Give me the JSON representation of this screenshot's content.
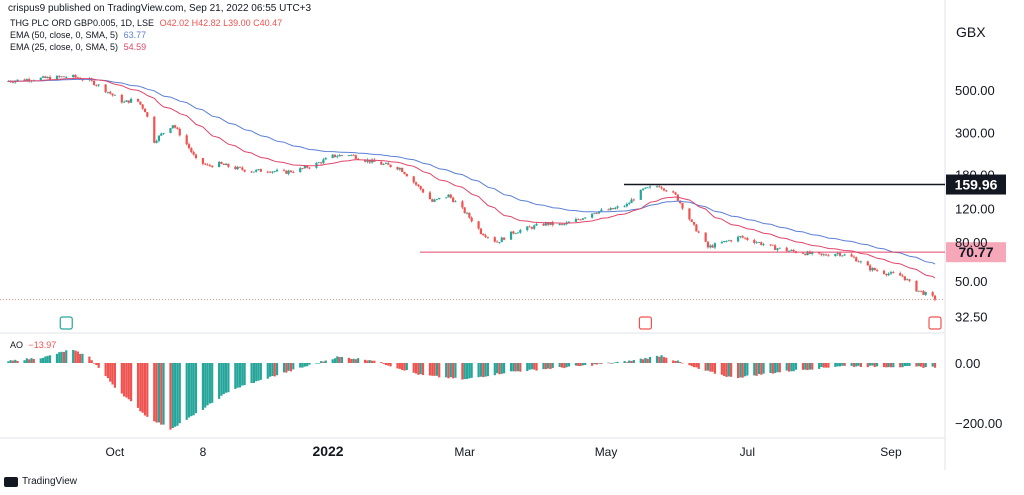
{
  "header": {
    "publisher": "crispus9 published on TradingView.com, Sep 21, 2022 06:55 UTC+3"
  },
  "legend": {
    "symbol": "THG PLC ORD GBP0.005, 1D, LSE",
    "ohlc": "O42.02 H42.82 L39.00 C40.47",
    "ema50_label": "EMA (50, close, 0, SMA, 5)",
    "ema50_value": "63.77",
    "ema25_label": "EMA (25, close, 0, SMA, 5)",
    "ema25_value": "54.59",
    "ao_label": "AO",
    "ao_value": "−13.97"
  },
  "footer": {
    "brand": "TradingView"
  },
  "colors": {
    "up": "#26a69a",
    "down": "#ef5350",
    "ema50": "#5b7fd6",
    "ema25": "#e0466a",
    "hline_resist": "#131722",
    "hline_support": "#e0466a"
  },
  "chart_data": [
    {
      "type": "candlestick",
      "title": "",
      "ylabel": "GBX",
      "y_scale": "log",
      "ylim": [
        30,
        900
      ],
      "y_ticks": [
        "500.00",
        "300.00",
        "180.00",
        "120.00",
        "80.00",
        "50.00",
        "32.50"
      ],
      "x_ticks": [
        "Oct",
        "8",
        "2022",
        "Mar",
        "May",
        "Jul",
        "Sep"
      ],
      "levels": [
        {
          "label": "159.96",
          "value": 159.96,
          "color": "#131722"
        },
        {
          "label": "70.77",
          "value": 70.77,
          "color": "#e0466a"
        }
      ],
      "close_series": [
        [
          "2021-08-15",
          555
        ],
        [
          "2021-08-25",
          570
        ],
        [
          "2021-09-05",
          580
        ],
        [
          "2021-09-12",
          590
        ],
        [
          "2021-09-20",
          560
        ],
        [
          "2021-09-25",
          520
        ],
        [
          "2021-09-30",
          470
        ],
        [
          "2021-10-05",
          430
        ],
        [
          "2021-10-10",
          450
        ],
        [
          "2021-10-14",
          390
        ],
        [
          "2021-10-18",
          270
        ],
        [
          "2021-10-22",
          300
        ],
        [
          "2021-10-26",
          330
        ],
        [
          "2021-11-01",
          260
        ],
        [
          "2021-11-05",
          215
        ],
        [
          "2021-11-10",
          200
        ],
        [
          "2021-11-15",
          205
        ],
        [
          "2021-11-22",
          195
        ],
        [
          "2021-11-29",
          188
        ],
        [
          "2021-12-06",
          190
        ],
        [
          "2021-12-13",
          185
        ],
        [
          "2021-12-20",
          192
        ],
        [
          "2021-12-27",
          205
        ],
        [
          "2022-01-03",
          225
        ],
        [
          "2022-01-10",
          230
        ],
        [
          "2022-01-17",
          215
        ],
        [
          "2022-01-24",
          205
        ],
        [
          "2022-02-01",
          195
        ],
        [
          "2022-02-08",
          160
        ],
        [
          "2022-02-15",
          130
        ],
        [
          "2022-02-22",
          140
        ],
        [
          "2022-03-01",
          115
        ],
        [
          "2022-03-08",
          90
        ],
        [
          "2022-03-15",
          80
        ],
        [
          "2022-03-22",
          90
        ],
        [
          "2022-03-29",
          95
        ],
        [
          "2022-04-05",
          100
        ],
        [
          "2022-04-12",
          98
        ],
        [
          "2022-04-19",
          105
        ],
        [
          "2022-04-26",
          115
        ],
        [
          "2022-05-03",
          118
        ],
        [
          "2022-05-10",
          125
        ],
        [
          "2022-05-17",
          150
        ],
        [
          "2022-05-24",
          158
        ],
        [
          "2022-05-31",
          140
        ],
        [
          "2022-06-07",
          100
        ],
        [
          "2022-06-14",
          75
        ],
        [
          "2022-06-21",
          80
        ],
        [
          "2022-06-28",
          85
        ],
        [
          "2022-07-05",
          80
        ],
        [
          "2022-07-12",
          75
        ],
        [
          "2022-07-19",
          72
        ],
        [
          "2022-07-26",
          70
        ],
        [
          "2022-08-02",
          68
        ],
        [
          "2022-08-09",
          70
        ],
        [
          "2022-08-16",
          66
        ],
        [
          "2022-08-23",
          58
        ],
        [
          "2022-08-30",
          55
        ],
        [
          "2022-09-06",
          53
        ],
        [
          "2022-09-12",
          45
        ],
        [
          "2022-09-20",
          40.47
        ]
      ]
    },
    {
      "type": "bar",
      "title": "",
      "ylabel": "",
      "name": "AO",
      "y_ticks": [
        "0.00",
        "−200.00"
      ],
      "ylim": [
        -230,
        60
      ],
      "ao_shape": [
        [
          "2021-08-15",
          5
        ],
        [
          "2021-09-01",
          20
        ],
        [
          "2021-09-12",
          45
        ],
        [
          "2021-09-20",
          20
        ],
        [
          "2021-10-01",
          -80
        ],
        [
          "2021-10-15",
          -180
        ],
        [
          "2021-10-25",
          -220
        ],
        [
          "2021-11-05",
          -170
        ],
        [
          "2021-11-20",
          -90
        ],
        [
          "2021-12-10",
          -40
        ],
        [
          "2022-01-05",
          20
        ],
        [
          "2022-01-20",
          10
        ],
        [
          "2022-02-10",
          -40
        ],
        [
          "2022-03-01",
          -55
        ],
        [
          "2022-03-20",
          -30
        ],
        [
          "2022-04-20",
          -10
        ],
        [
          "2022-05-10",
          5
        ],
        [
          "2022-05-25",
          25
        ],
        [
          "2022-06-10",
          -20
        ],
        [
          "2022-06-25",
          -50
        ],
        [
          "2022-07-15",
          -30
        ],
        [
          "2022-08-10",
          -10
        ],
        [
          "2022-09-20",
          -13.97
        ]
      ]
    }
  ]
}
